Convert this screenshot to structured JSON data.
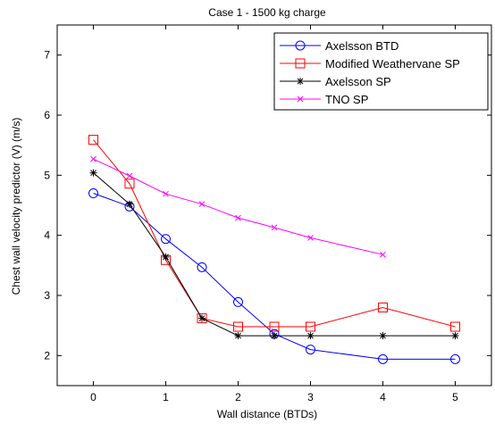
{
  "chart_data": {
    "type": "line",
    "title": "Case 1 - 1500 kg charge",
    "xlabel": "Wall distance (BTDs)",
    "ylabel": "Chest wall velocity predictor (V) (m/s)",
    "xlim": [
      -0.5,
      5.5
    ],
    "ylim": [
      1.5,
      7.5
    ],
    "xticks": [
      0,
      1,
      2,
      3,
      4,
      5
    ],
    "yticks": [
      2,
      3,
      4,
      5,
      6,
      7
    ],
    "grid": false,
    "legend_position": "top-right",
    "series": [
      {
        "name": "Axelsson BTD",
        "color": "#0000ff",
        "marker": "circle",
        "x": [
          0,
          0.5,
          1,
          1.5,
          2,
          2.5,
          3,
          4,
          5
        ],
        "y": [
          4.7,
          4.48,
          3.94,
          3.47,
          2.89,
          2.36,
          2.1,
          1.94,
          1.94
        ]
      },
      {
        "name": "Modified Weathervane SP",
        "color": "#ff0000",
        "marker": "square",
        "x": [
          0,
          0.5,
          1,
          1.5,
          2,
          2.5,
          3,
          4,
          5
        ],
        "y": [
          5.59,
          4.86,
          3.59,
          2.62,
          2.48,
          2.48,
          2.48,
          2.8,
          2.48
        ]
      },
      {
        "name": "Axelsson SP",
        "color": "#000000",
        "marker": "star",
        "x": [
          0,
          0.5,
          1,
          1.5,
          2,
          2.5,
          3,
          4,
          5
        ],
        "y": [
          5.04,
          4.52,
          3.64,
          2.62,
          2.33,
          2.33,
          2.33,
          2.33,
          2.33
        ]
      },
      {
        "name": "TNO SP",
        "color": "#ff00ff",
        "marker": "x",
        "x": [
          0,
          0.5,
          1,
          1.5,
          2,
          2.5,
          3,
          4
        ],
        "y": [
          5.27,
          4.99,
          4.69,
          4.52,
          4.29,
          4.13,
          3.96,
          3.68
        ]
      }
    ]
  }
}
